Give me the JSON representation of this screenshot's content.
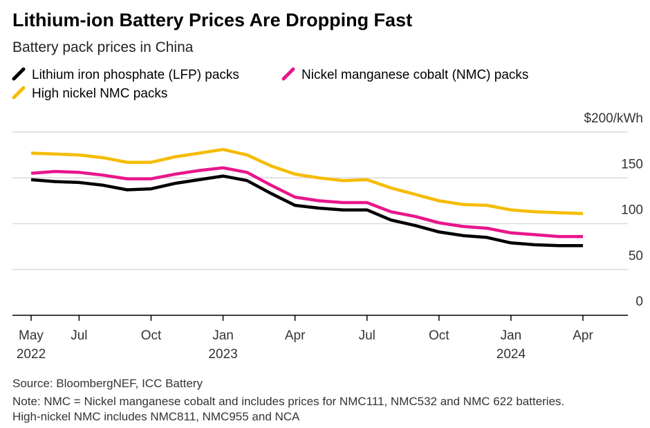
{
  "chart_data": {
    "type": "line",
    "title": "Lithium-ion Battery Prices Are Dropping Fast",
    "subtitle": "Battery pack prices in China",
    "categories": [
      "May 2022",
      null,
      "Jul",
      null,
      null,
      "Oct",
      null,
      null,
      "Jan 2023",
      null,
      null,
      "Apr",
      null,
      null,
      "Jul",
      null,
      null,
      "Oct",
      null,
      null,
      "Jan 2024",
      null,
      null,
      "Apr"
    ],
    "series": [
      {
        "name": "Lithium iron phosphate (LFP) packs",
        "color": "#000000",
        "values": [
          148,
          146,
          145,
          142,
          137,
          138,
          144,
          148,
          152,
          147,
          133,
          120,
          117,
          115,
          115,
          104,
          98,
          91,
          87,
          85,
          79,
          77,
          76,
          76
        ]
      },
      {
        "name": "Nickel manganese cobalt (NMC) packs",
        "color": "#e8168c",
        "values": [
          155,
          157,
          156,
          153,
          149,
          149,
          154,
          158,
          161,
          156,
          142,
          129,
          125,
          123,
          123,
          113,
          108,
          101,
          97,
          95,
          90,
          88,
          86,
          86
        ]
      },
      {
        "name": "High nickel NMC packs",
        "color": "#f5bc00",
        "values": [
          177,
          176,
          175,
          172,
          167,
          167,
          173,
          177,
          181,
          175,
          163,
          154,
          150,
          147,
          148,
          139,
          132,
          125,
          121,
          120,
          115,
          113,
          112,
          111
        ]
      }
    ],
    "ylim": [
      0,
      200
    ],
    "yticks": [
      0,
      50,
      100,
      150,
      {
        "value": 200,
        "label": "$200/kWh"
      }
    ],
    "grid": true,
    "source": "Source: BloombergNEF, ICC Battery",
    "note": "Note: NMC = Nickel manganese cobalt and includes prices for NMC111, NMC532 and NMC 622 batteries. High-nickel NMC includes NMC811, NMC955 and NCA"
  }
}
